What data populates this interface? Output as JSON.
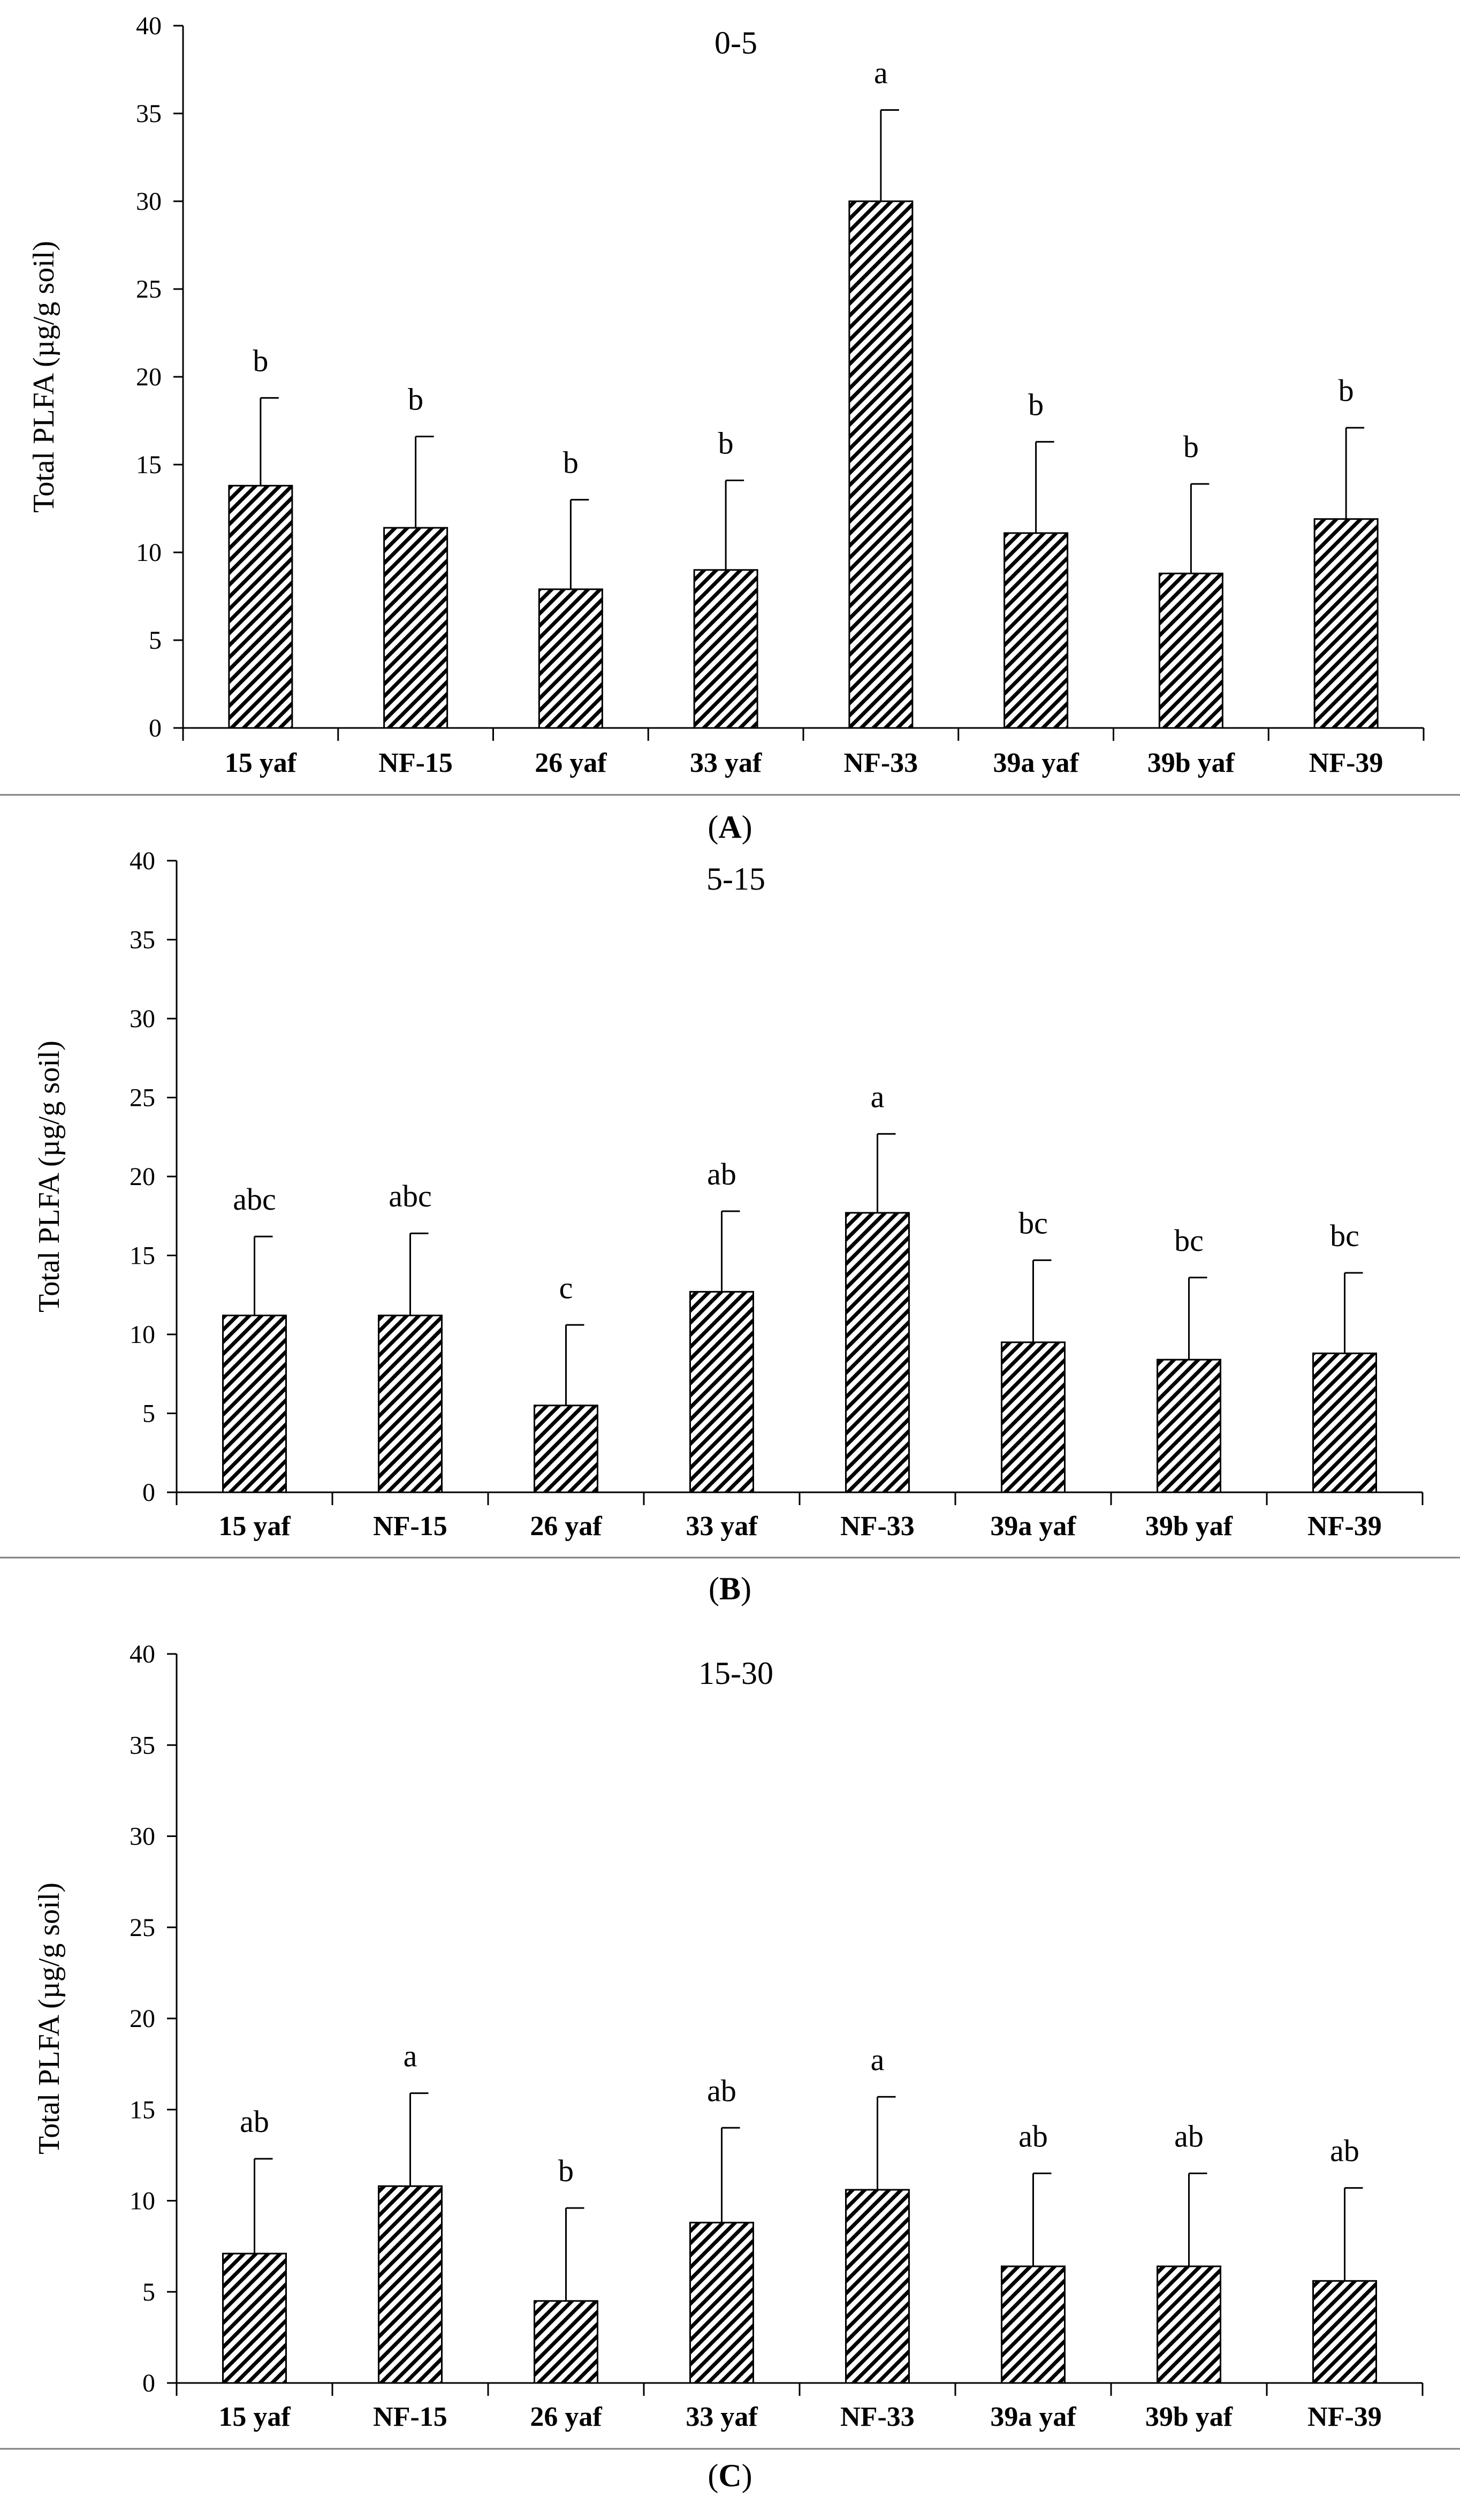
{
  "chart_data": [
    {
      "type": "bar",
      "panel": "A",
      "caption_prefix": "(",
      "caption_suffix": ")",
      "title": "0-5",
      "ylabel": "Total PLFA (µg/g soil)",
      "xlabel": "",
      "ylim": [
        0,
        40
      ],
      "yticks": [
        0,
        5,
        10,
        15,
        20,
        25,
        30,
        35,
        40
      ],
      "categories": [
        "15 yaf",
        "NF-15",
        "26 yaf",
        "33 yaf",
        "NF-33",
        "39a yaf",
        "39b yaf",
        "NF-39"
      ],
      "values": [
        13.8,
        11.4,
        7.9,
        9.0,
        30.0,
        11.1,
        8.8,
        11.9
      ],
      "errors": [
        5.0,
        5.2,
        5.1,
        5.1,
        5.2,
        5.2,
        5.1,
        5.2
      ],
      "significance": [
        "b",
        "b",
        "b",
        "b",
        "a",
        "b",
        "b",
        "b"
      ],
      "grid": false
    },
    {
      "type": "bar",
      "panel": "B",
      "caption_prefix": "(",
      "caption_suffix": ")",
      "title": "5-15",
      "ylabel": "Total PLFA (µg/g soil)",
      "xlabel": "",
      "ylim": [
        0,
        40
      ],
      "yticks": [
        0,
        5,
        10,
        15,
        20,
        25,
        30,
        35,
        40
      ],
      "categories": [
        "15 yaf",
        "NF-15",
        "26 yaf",
        "33 yaf",
        "NF-33",
        "39a yaf",
        "39b yaf",
        "NF-39"
      ],
      "values": [
        11.2,
        11.2,
        5.5,
        12.7,
        17.7,
        9.5,
        8.4,
        8.8
      ],
      "errors": [
        5.0,
        5.2,
        5.1,
        5.1,
        5.0,
        5.2,
        5.2,
        5.1
      ],
      "significance": [
        "abc",
        "abc",
        "c",
        "ab",
        "a",
        "bc",
        "bc",
        "bc"
      ],
      "grid": false
    },
    {
      "type": "bar",
      "panel": "C",
      "caption_prefix": "(",
      "caption_suffix": ")",
      "title": "15-30",
      "ylabel": "Total PLFA (µg/g soil)",
      "xlabel": "",
      "ylim": [
        0,
        40
      ],
      "yticks": [
        0,
        5,
        10,
        15,
        20,
        25,
        30,
        35,
        40
      ],
      "categories": [
        "15 yaf",
        "NF-15",
        "26 yaf",
        "33 yaf",
        "NF-33",
        "39a yaf",
        "39b yaf",
        "NF-39"
      ],
      "values": [
        7.1,
        10.8,
        4.5,
        8.8,
        10.6,
        6.4,
        6.4,
        5.6
      ],
      "errors": [
        5.2,
        5.1,
        5.1,
        5.2,
        5.1,
        5.1,
        5.1,
        5.1
      ],
      "significance": [
        "ab",
        "a",
        "b",
        "ab",
        "a",
        "ab",
        "ab",
        "ab"
      ],
      "grid": false
    }
  ],
  "colors": {
    "bar_hatch": "#000000",
    "bar_background": "#ffffff",
    "axis": "#000000",
    "divider": "#7f7f7f"
  }
}
